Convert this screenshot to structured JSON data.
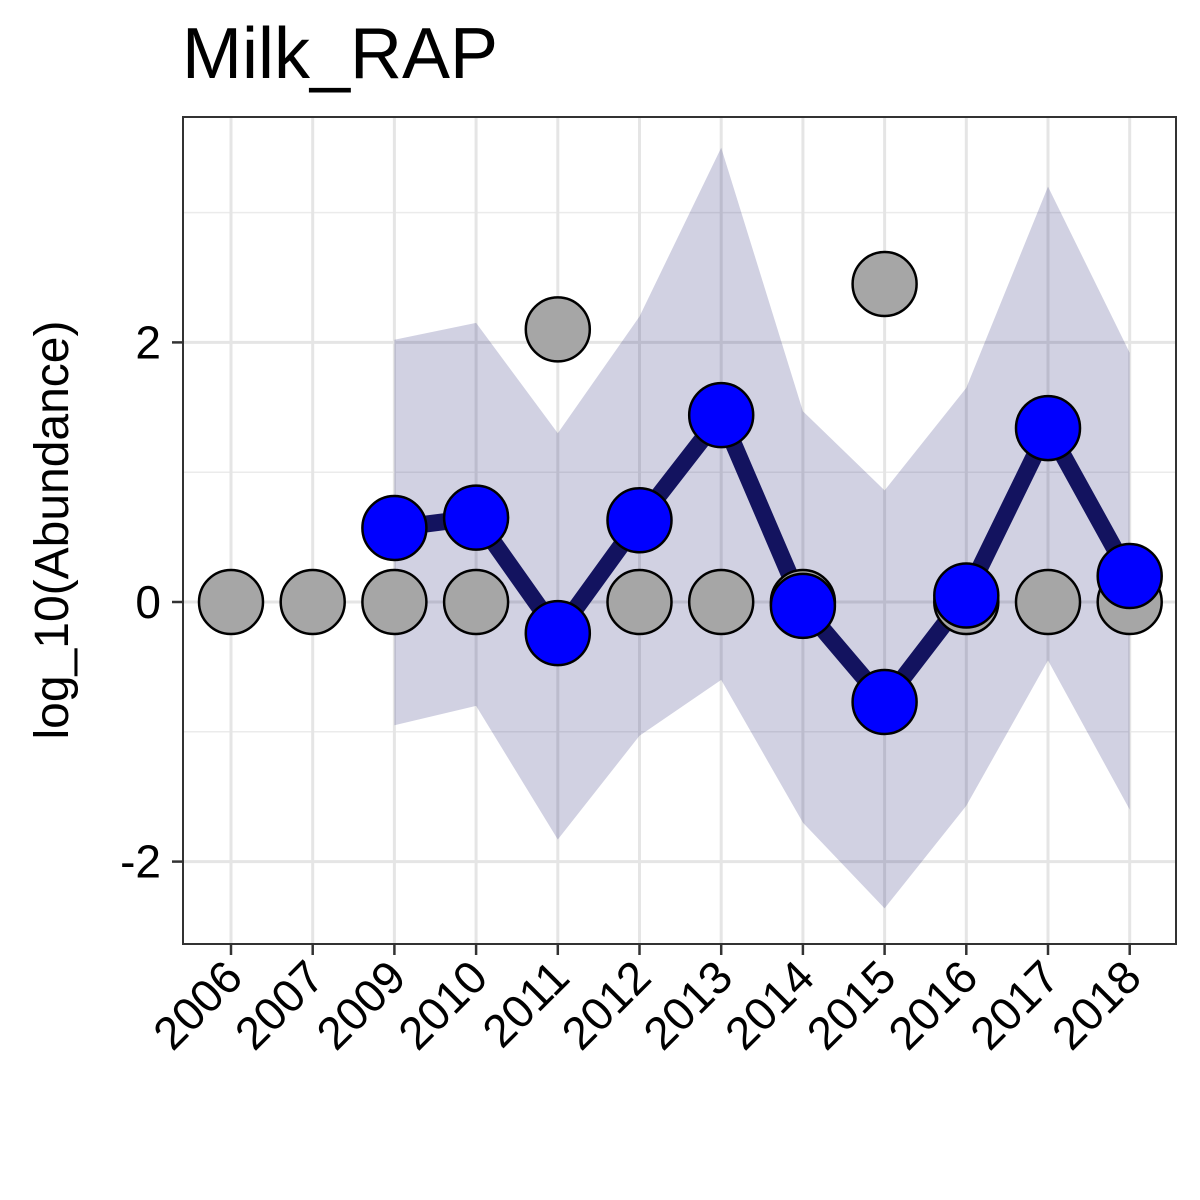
{
  "chart_data": {
    "type": "line",
    "title": "Milk_RAP",
    "xlabel": "",
    "ylabel": "log_10(Abundance)",
    "categories": [
      "2006",
      "2007",
      "2009",
      "2010",
      "2011",
      "2012",
      "2013",
      "2014",
      "2015",
      "2016",
      "2017",
      "2018"
    ],
    "ylim": [
      -2.6,
      3.8
    ],
    "yticks": [
      -2,
      0,
      2
    ],
    "ytick_labels": [
      "-2",
      "0",
      "2"
    ],
    "grid": true,
    "series": [
      {
        "values": [
          0,
          0,
          0,
          0,
          2.1,
          0,
          0,
          0,
          2.45,
          0,
          0,
          0
        ],
        "color": "#a6a6a6",
        "style": "points"
      },
      {
        "values": [
          null,
          null,
          0.57,
          0.65,
          -0.24,
          0.63,
          1.44,
          -0.03,
          -0.77,
          0.05,
          1.34,
          0.2
        ],
        "lower": [
          null,
          null,
          -0.95,
          -0.8,
          -1.83,
          -1.03,
          -0.6,
          -1.7,
          -2.36,
          -1.57,
          -0.45,
          -1.6
        ],
        "upper": [
          null,
          null,
          2.02,
          2.15,
          1.3,
          2.2,
          3.5,
          1.47,
          0.86,
          1.65,
          3.2,
          1.92
        ],
        "color": "#0000ff",
        "line_color": "#13135f",
        "band_color": "#191970",
        "style": "line+points+band"
      }
    ]
  }
}
